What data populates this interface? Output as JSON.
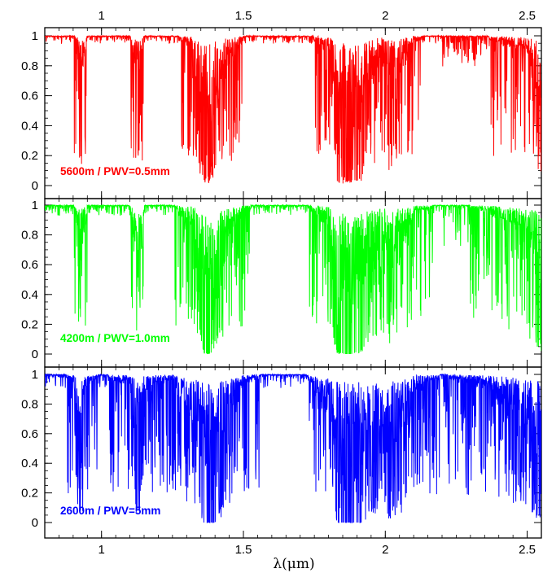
{
  "chart_data": {
    "type": "line",
    "xlabel": "λ(μm)",
    "xlim": [
      0.8,
      2.55
    ],
    "x_ticks": [
      "1",
      "1.5",
      "2",
      "2.5"
    ],
    "x_tick_values": [
      1.0,
      1.5,
      2.0,
      2.5
    ],
    "ylim": [
      -0.08,
      1.05
    ],
    "y_ticks": [
      "0",
      "0.2",
      "0.4",
      "0.6",
      "0.8",
      "1"
    ],
    "y_tick_values": [
      0,
      0.2,
      0.4,
      0.6,
      0.8,
      1.0
    ],
    "grid": false,
    "panels": [
      {
        "label": "5600m / PWV=0.5mm",
        "color": "#ff0000",
        "depth_scale": 0.62,
        "x": [
          0.8,
          0.9,
          0.93,
          0.95,
          1.0,
          1.1,
          1.13,
          1.15,
          1.25,
          1.32,
          1.36,
          1.38,
          1.4,
          1.43,
          1.46,
          1.5,
          1.6,
          1.72,
          1.8,
          1.83,
          1.86,
          1.88,
          1.92,
          1.95,
          2.0,
          2.01,
          2.06,
          2.1,
          2.2,
          2.35,
          2.45,
          2.5,
          2.55
        ],
        "y": [
          1.0,
          1.0,
          0.7,
          0.98,
          1.0,
          0.99,
          0.5,
          0.98,
          0.99,
          0.9,
          0.1,
          0.05,
          0.3,
          0.6,
          0.8,
          0.97,
          0.99,
          0.99,
          0.9,
          0.1,
          0.05,
          0.03,
          0.15,
          0.6,
          0.8,
          0.45,
          0.72,
          0.95,
          0.99,
          0.97,
          0.9,
          0.8,
          0.2
        ]
      },
      {
        "label": "4200m / PWV=1.0mm",
        "color": "#00ff00",
        "depth_scale": 0.85,
        "x": [
          0.8,
          0.9,
          0.93,
          0.95,
          1.0,
          1.1,
          1.13,
          1.15,
          1.25,
          1.32,
          1.36,
          1.38,
          1.4,
          1.43,
          1.46,
          1.5,
          1.6,
          1.72,
          1.8,
          1.83,
          1.86,
          1.88,
          1.92,
          1.95,
          2.0,
          2.01,
          2.06,
          2.1,
          2.2,
          2.35,
          2.45,
          2.5,
          2.55
        ],
        "y": [
          1.0,
          1.0,
          0.55,
          0.97,
          1.0,
          0.98,
          0.26,
          0.97,
          0.98,
          0.8,
          0.02,
          0.0,
          0.15,
          0.45,
          0.72,
          0.95,
          0.99,
          0.99,
          0.8,
          0.02,
          0.0,
          0.0,
          0.05,
          0.45,
          0.7,
          0.32,
          0.6,
          0.92,
          0.98,
          0.95,
          0.8,
          0.6,
          0.05
        ]
      },
      {
        "label": "2600m / PWV=5mm",
        "color": "#0000ff",
        "depth_scale": 1.15,
        "x": [
          0.8,
          0.9,
          0.93,
          0.95,
          1.0,
          1.1,
          1.13,
          1.15,
          1.25,
          1.32,
          1.36,
          1.38,
          1.4,
          1.43,
          1.46,
          1.5,
          1.6,
          1.72,
          1.8,
          1.83,
          1.86,
          1.88,
          1.92,
          1.95,
          2.0,
          2.01,
          2.06,
          2.1,
          2.2,
          2.35,
          2.45,
          2.5,
          2.55
        ],
        "y": [
          0.99,
          0.95,
          0.17,
          0.9,
          0.98,
          0.9,
          0.0,
          0.85,
          0.95,
          0.55,
          0.0,
          0.0,
          0.0,
          0.2,
          0.55,
          0.92,
          0.99,
          0.98,
          0.6,
          0.0,
          0.0,
          0.0,
          0.0,
          0.15,
          0.45,
          0.1,
          0.35,
          0.85,
          0.97,
          0.9,
          0.6,
          0.4,
          0.0
        ]
      }
    ]
  }
}
